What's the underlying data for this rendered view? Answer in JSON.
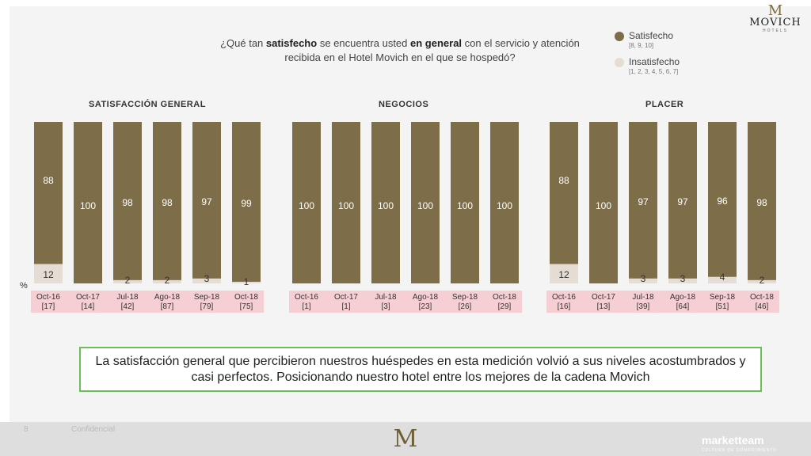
{
  "question": {
    "p1": "¿Qué tan ",
    "b1": "satisfecho",
    "p2": " se encuentra usted ",
    "b2": "en general",
    "p3": " con el servicio y atención recibida en el Hotel Movich en el que se hospedó?"
  },
  "logo": {
    "mark": "M",
    "text": "MOVICH",
    "sub": "HOTELS"
  },
  "legend": [
    {
      "label": "Satisfecho",
      "range": "[8, 9, 10]",
      "color": "#7d6e49"
    },
    {
      "label": "Insatisfecho",
      "range": "[1, 2, 3, 4, 5, 6, 7]",
      "color": "#e5ddd3"
    }
  ],
  "percent_symbol": "%",
  "colors": {
    "satisfied": "#7d6e49",
    "unsatisfied": "#e5ddd3",
    "label_band": "#f6cfd4",
    "callout_border": "#6bbf59"
  },
  "chart_data": [
    {
      "type": "bar",
      "stacked": true,
      "title": "SATISFACCIÓN GENERAL",
      "categories": [
        "Oct-16",
        "Oct-17",
        "Jul-18",
        "Ago-18",
        "Sep-18",
        "Oct-18"
      ],
      "bases": [
        "[17]",
        "[14]",
        "[42]",
        "[87]",
        "[79]",
        "[75]"
      ],
      "satisfied": [
        88,
        100,
        98,
        98,
        97,
        99
      ],
      "unsatisfied": [
        12,
        null,
        2,
        2,
        3,
        1
      ]
    },
    {
      "type": "bar",
      "stacked": true,
      "title": "NEGOCIOS",
      "categories": [
        "Oct-16",
        "Oct-17",
        "Jul-18",
        "Ago-18",
        "Sep-18",
        "Oct-18"
      ],
      "bases": [
        "[1]",
        "[1]",
        "[3]",
        "[23]",
        "[26]",
        "[29]"
      ],
      "satisfied": [
        100,
        100,
        100,
        100,
        100,
        100
      ],
      "unsatisfied": [
        null,
        null,
        null,
        null,
        null,
        null
      ]
    },
    {
      "type": "bar",
      "stacked": true,
      "title": "PLACER",
      "categories": [
        "Oct-16",
        "Oct-17",
        "Jul-18",
        "Ago-18",
        "Sep-18",
        "Oct-18"
      ],
      "bases": [
        "[16]",
        "[13]",
        "[39]",
        "[64]",
        "[51]",
        "[46]"
      ],
      "satisfied": [
        88,
        100,
        97,
        97,
        96,
        98
      ],
      "unsatisfied": [
        12,
        null,
        3,
        3,
        4,
        2
      ]
    }
  ],
  "callout": "La satisfacción general que percibieron nuestros huéspedes en esta medición volvió a sus niveles acostumbrados y casi perfectos. Posicionando nuestro hotel entre los mejores de la cadena Movich",
  "footer": {
    "page": "8",
    "conf": "Confidencial",
    "mark": "M",
    "brand": "marketteam",
    "brand_sub": "CULTURA DE CONOCIMIENTO"
  }
}
